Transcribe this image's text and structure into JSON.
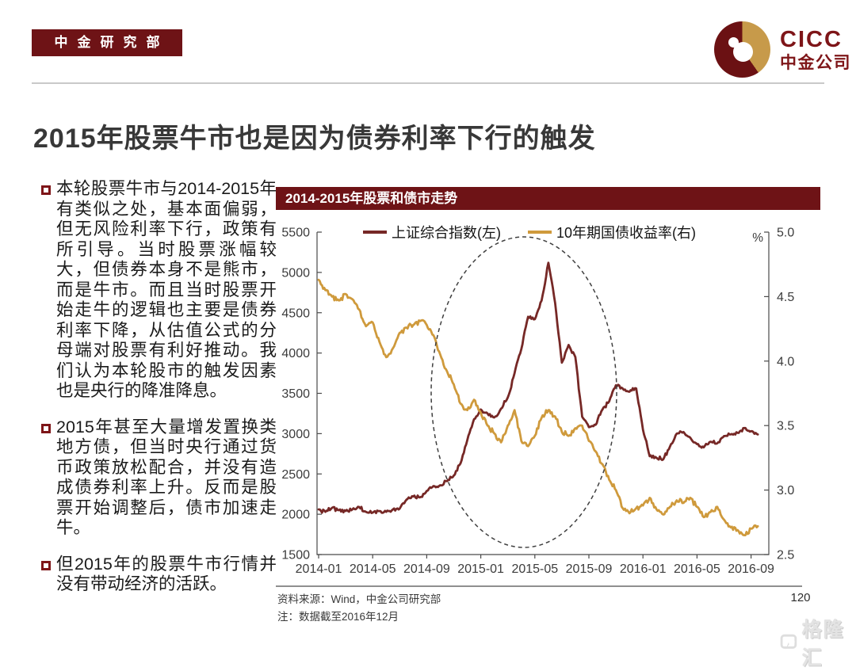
{
  "header": {
    "dept_badge": "中金研究部",
    "logo_cicc": "CICC",
    "logo_cn": "中金公司"
  },
  "slide": {
    "title": "2015年股票牛市也是因为债券利率下行的触发",
    "page_number": "120"
  },
  "bullets": [
    {
      "text": "本轮股票牛市与2014-2015年有类似之处，基本面偏弱，但无风险利率下行，政策有所引导。当时股票涨幅较大，但债券本身不是熊市，而是牛市。而且当时股票开始走牛的逻辑也主要是债券利率下降，从估值公式的分母端对股票有利好推动。我们认为本轮股市的触发因素也是央行的降准降息。"
    },
    {
      "text": "2015年甚至大量增发置换类地方债，但当时央行通过货币政策放松配合，并没有造成债券利率上升。反而是股票开始调整后，债市加速走牛。"
    },
    {
      "text": "但2015年的股票牛市行情并没有带动经济的活跃。"
    }
  ],
  "chart": {
    "panel_title": "2014-2015年股票和债市走势",
    "unit_label": "%",
    "source_note": "资料来源：Wind，中金公司研究部",
    "data_note": "注：数据截至2016年12月"
  },
  "chart_data": {
    "type": "line",
    "title": "2014-2015年股票和债市走势",
    "sampling": "semi-monthly values (2 per month), Jan 2014 - Sep 2016, drawn as daily-style jagged lines",
    "x_tick_labels": [
      "2014-01",
      "2014-05",
      "2014-09",
      "2015-01",
      "2015-05",
      "2015-09",
      "2016-01",
      "2016-05",
      "2016-09"
    ],
    "left_axis": {
      "tick_labels": [
        "5500",
        "5000",
        "4500",
        "4000",
        "3500",
        "3000",
        "2500",
        "2000",
        "1500"
      ],
      "ylim": [
        1500,
        5500
      ]
    },
    "right_axis": {
      "label": "%",
      "tick_labels": [
        "5.0",
        "4.5",
        "4.0",
        "3.5",
        "3.0",
        "2.5"
      ],
      "ylim": [
        2.5,
        5.0
      ]
    },
    "grid": false,
    "legend_position": "top-center",
    "series": [
      {
        "name": "上证综合指数(左)",
        "axis": "left",
        "color": "#762826",
        "values": [
          2060,
          2030,
          2080,
          2050,
          2040,
          2060,
          2090,
          2030,
          2020,
          2040,
          2030,
          2060,
          2070,
          2180,
          2220,
          2210,
          2290,
          2350,
          2360,
          2410,
          2480,
          2630,
          2920,
          3180,
          3300,
          3250,
          3200,
          3310,
          3450,
          3750,
          4050,
          4450,
          4420,
          4650,
          5120,
          4620,
          3880,
          4100,
          3950,
          3210,
          3080,
          3110,
          3300,
          3400,
          3600,
          3560,
          3520,
          3560,
          3050,
          2720,
          2700,
          2680,
          2840,
          3000,
          3020,
          2950,
          2870,
          2830,
          2900,
          2880,
          2970,
          2990,
          3010,
          3070,
          3030,
          2990
        ]
      },
      {
        "name": "10年期国债收益率(右)",
        "axis": "right",
        "color": "#cf9a3c",
        "values": [
          4.63,
          4.55,
          4.5,
          4.47,
          4.52,
          4.48,
          4.4,
          4.27,
          4.3,
          4.15,
          4.03,
          4.1,
          4.22,
          4.26,
          4.28,
          4.31,
          4.28,
          4.2,
          4.05,
          3.92,
          3.82,
          3.67,
          3.62,
          3.7,
          3.6,
          3.5,
          3.44,
          3.37,
          3.5,
          3.62,
          3.38,
          3.34,
          3.42,
          3.56,
          3.62,
          3.57,
          3.45,
          3.42,
          3.48,
          3.5,
          3.38,
          3.3,
          3.2,
          3.08,
          3.0,
          2.86,
          2.82,
          2.86,
          2.88,
          2.94,
          2.85,
          2.81,
          2.87,
          2.92,
          2.9,
          2.94,
          2.87,
          2.79,
          2.83,
          2.87,
          2.77,
          2.71,
          2.69,
          2.65,
          2.7,
          2.72
        ]
      }
    ],
    "annotation": {
      "shape": "dashed-ellipse",
      "highlights": "2014-09 至 2015-09 期间（债券利率下行触发的股票牛市）"
    }
  },
  "watermark": {
    "brand": "格隆汇"
  },
  "colors": {
    "brand_red": "#6e1316",
    "logo_gold": "#c79a4a",
    "stock_line": "#762826",
    "yield_line": "#cf9a3c",
    "title_text": "#383838"
  }
}
